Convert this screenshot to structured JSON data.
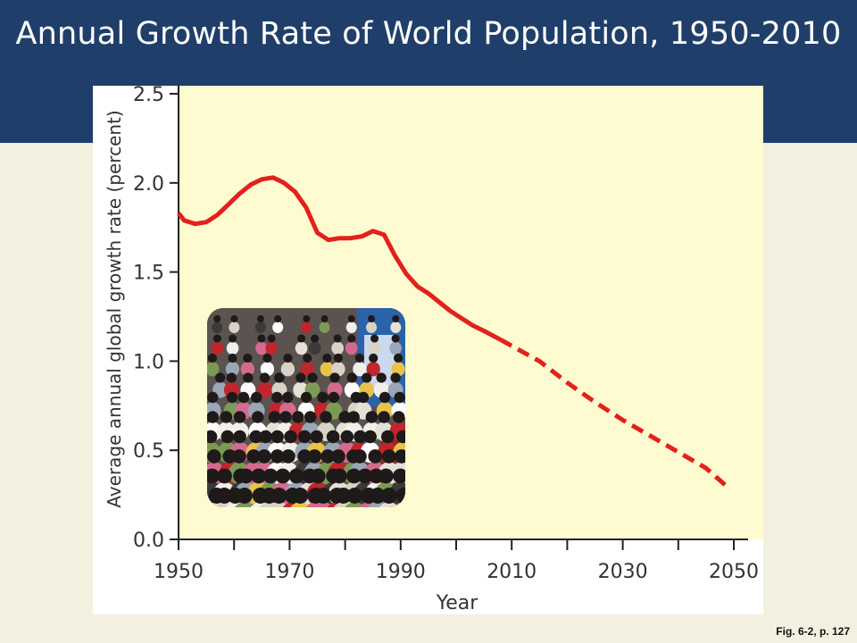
{
  "slide": {
    "title": "Annual Growth Rate of World Population, 1950-2010",
    "caption": "Fig. 6-2, p. 127"
  },
  "colors": {
    "header": "#1f3f6a",
    "slide_background": "#f3f0df",
    "plot_background": "#fefbd0",
    "series": "#e3211c",
    "axis": "#222222"
  },
  "chart_data": {
    "type": "line",
    "xlabel": "Year",
    "ylabel": "Average annual global growth rate (percent)",
    "xlim": [
      1950,
      2050
    ],
    "ylim": [
      0,
      2.5
    ],
    "x_ticks": [
      "1950",
      "1970",
      "1990",
      "2010",
      "2030",
      "2050"
    ],
    "y_ticks": [
      "0.0",
      "0.5",
      "1.0",
      "1.5",
      "2.0",
      "2.5"
    ],
    "grid": false,
    "series": [
      {
        "style": "solid",
        "x": [
          1950,
          1951,
          1953,
          1955,
          1957,
          1959,
          1961,
          1963,
          1965,
          1967,
          1969,
          1971,
          1973,
          1975,
          1977,
          1979,
          1981,
          1983,
          1985,
          1987,
          1989,
          1991,
          1993,
          1995,
          1997,
          1999,
          2001,
          2003,
          2005,
          2008
        ],
        "y": [
          1.83,
          1.79,
          1.77,
          1.78,
          1.82,
          1.88,
          1.94,
          1.99,
          2.02,
          2.03,
          2.0,
          1.95,
          1.86,
          1.72,
          1.68,
          1.69,
          1.69,
          1.7,
          1.73,
          1.71,
          1.59,
          1.49,
          1.42,
          1.38,
          1.33,
          1.28,
          1.24,
          1.2,
          1.17,
          1.12
        ]
      },
      {
        "style": "dashed",
        "x": [
          2008,
          2015,
          2020,
          2025,
          2030,
          2035,
          2040,
          2045,
          2049
        ],
        "y": [
          1.12,
          1.0,
          0.88,
          0.77,
          0.67,
          0.58,
          0.49,
          0.4,
          0.29
        ]
      }
    ]
  },
  "photo": {
    "icon": "crowd-photo",
    "description_icon": "people-crowd"
  }
}
